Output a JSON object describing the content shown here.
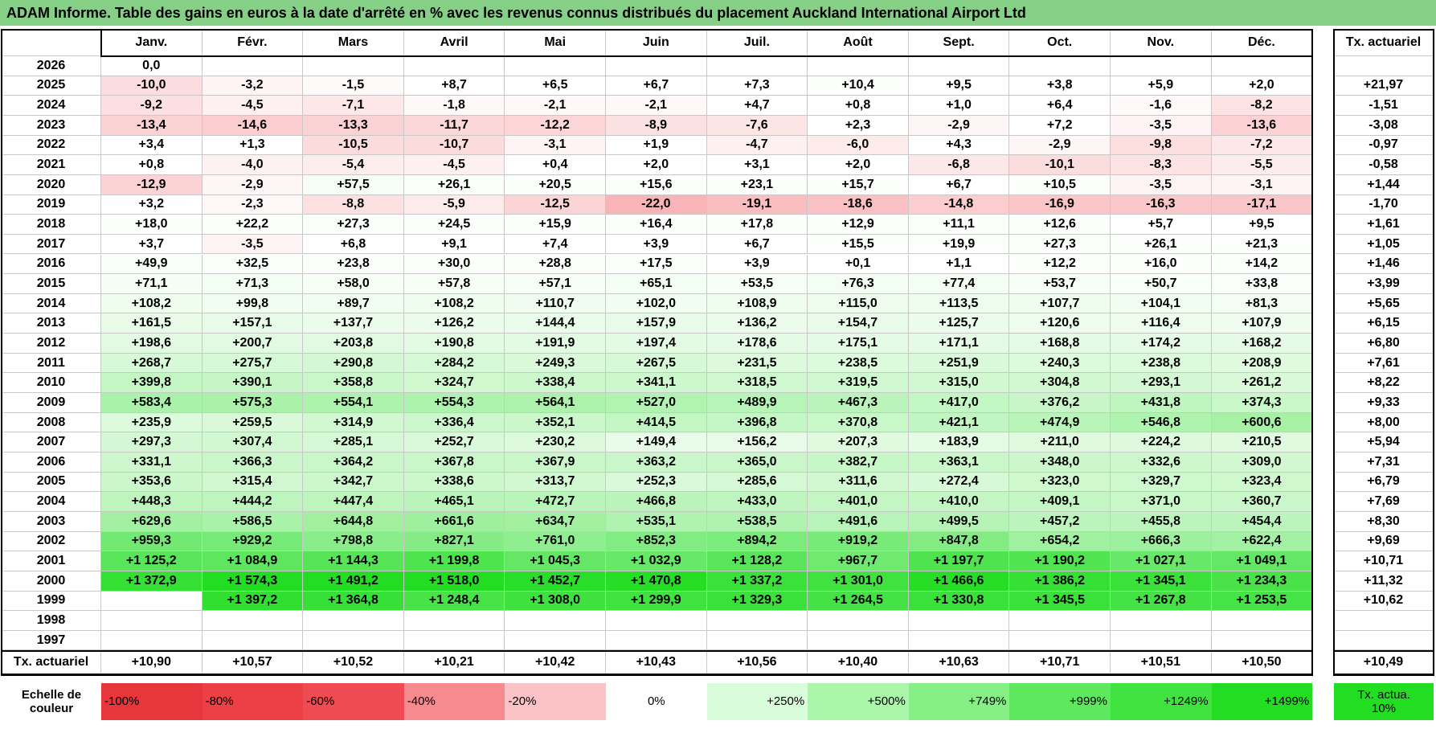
{
  "title": "ADAM Informe. Table des gains en euros à la date d'arrêté en % avec les revenus connus distribués du placement Auckland International Airport Ltd",
  "table": {
    "columns": [
      "Janv.",
      "Févr.",
      "Mars",
      "Avril",
      "Mai",
      "Juin",
      "Juil.",
      "Août",
      "Sept.",
      "Oct.",
      "Nov.",
      "Déc."
    ],
    "rate_header": "Tx. actuariel",
    "rows": [
      {
        "year": "2026",
        "values": [
          "0,0",
          null,
          null,
          null,
          null,
          null,
          null,
          null,
          null,
          null,
          null,
          null
        ],
        "rate": null
      },
      {
        "year": "2025",
        "values": [
          "-10,0",
          "-3,2",
          "-1,5",
          "+8,7",
          "+6,5",
          "+6,7",
          "+7,3",
          "+10,4",
          "+9,5",
          "+3,8",
          "+5,9",
          "+2,0"
        ],
        "rate": "+21,97"
      },
      {
        "year": "2024",
        "values": [
          "-9,2",
          "-4,5",
          "-7,1",
          "-1,8",
          "-2,1",
          "-2,1",
          "+4,7",
          "+0,8",
          "+1,0",
          "+6,4",
          "-1,6",
          "-8,2"
        ],
        "rate": "-1,51"
      },
      {
        "year": "2023",
        "values": [
          "-13,4",
          "-14,6",
          "-13,3",
          "-11,7",
          "-12,2",
          "-8,9",
          "-7,6",
          "+2,3",
          "-2,9",
          "+7,2",
          "-3,5",
          "-13,6"
        ],
        "rate": "-3,08"
      },
      {
        "year": "2022",
        "values": [
          "+3,4",
          "+1,3",
          "-10,5",
          "-10,7",
          "-3,1",
          "+1,9",
          "-4,7",
          "-6,0",
          "+4,3",
          "-2,9",
          "-9,8",
          "-7,2"
        ],
        "rate": "-0,97"
      },
      {
        "year": "2021",
        "values": [
          "+0,8",
          "-4,0",
          "-5,4",
          "-4,5",
          "+0,4",
          "+2,0",
          "+3,1",
          "+2,0",
          "-6,8",
          "-10,1",
          "-8,3",
          "-5,5"
        ],
        "rate": "-0,58"
      },
      {
        "year": "2020",
        "values": [
          "-12,9",
          "-2,9",
          "+57,5",
          "+26,1",
          "+20,5",
          "+15,6",
          "+23,1",
          "+15,7",
          "+6,7",
          "+10,5",
          "-3,5",
          "-3,1"
        ],
        "rate": "+1,44"
      },
      {
        "year": "2019",
        "values": [
          "+3,2",
          "-2,3",
          "-8,8",
          "-5,9",
          "-12,5",
          "-22,0",
          "-19,1",
          "-18,6",
          "-14,8",
          "-16,9",
          "-16,3",
          "-17,1"
        ],
        "rate": "-1,70"
      },
      {
        "year": "2018",
        "values": [
          "+18,0",
          "+22,2",
          "+27,3",
          "+24,5",
          "+15,9",
          "+16,4",
          "+17,8",
          "+12,9",
          "+11,1",
          "+12,6",
          "+5,7",
          "+9,5"
        ],
        "rate": "+1,61"
      },
      {
        "year": "2017",
        "values": [
          "+3,7",
          "-3,5",
          "+6,8",
          "+9,1",
          "+7,4",
          "+3,9",
          "+6,7",
          "+15,5",
          "+19,9",
          "+27,3",
          "+26,1",
          "+21,3"
        ],
        "rate": "+1,05"
      },
      {
        "year": "2016",
        "values": [
          "+49,9",
          "+32,5",
          "+23,8",
          "+30,0",
          "+28,8",
          "+17,5",
          "+3,9",
          "+0,1",
          "+1,1",
          "+12,2",
          "+16,0",
          "+14,2"
        ],
        "rate": "+1,46"
      },
      {
        "year": "2015",
        "values": [
          "+71,1",
          "+71,3",
          "+58,0",
          "+57,8",
          "+57,1",
          "+65,1",
          "+53,5",
          "+76,3",
          "+77,4",
          "+53,7",
          "+50,7",
          "+33,8"
        ],
        "rate": "+3,99"
      },
      {
        "year": "2014",
        "values": [
          "+108,2",
          "+99,8",
          "+89,7",
          "+108,2",
          "+110,7",
          "+102,0",
          "+108,9",
          "+115,0",
          "+113,5",
          "+107,7",
          "+104,1",
          "+81,3"
        ],
        "rate": "+5,65"
      },
      {
        "year": "2013",
        "values": [
          "+161,5",
          "+157,1",
          "+137,7",
          "+126,2",
          "+144,4",
          "+157,9",
          "+136,2",
          "+154,7",
          "+125,7",
          "+120,6",
          "+116,4",
          "+107,9"
        ],
        "rate": "+6,15"
      },
      {
        "year": "2012",
        "values": [
          "+198,6",
          "+200,7",
          "+203,8",
          "+190,8",
          "+191,9",
          "+197,4",
          "+178,6",
          "+175,1",
          "+171,1",
          "+168,8",
          "+174,2",
          "+168,2"
        ],
        "rate": "+6,80"
      },
      {
        "year": "2011",
        "values": [
          "+268,7",
          "+275,7",
          "+290,8",
          "+284,2",
          "+249,3",
          "+267,5",
          "+231,5",
          "+238,5",
          "+251,9",
          "+240,3",
          "+238,8",
          "+208,9"
        ],
        "rate": "+7,61"
      },
      {
        "year": "2010",
        "values": [
          "+399,8",
          "+390,1",
          "+358,8",
          "+324,7",
          "+338,4",
          "+341,1",
          "+318,5",
          "+319,5",
          "+315,0",
          "+304,8",
          "+293,1",
          "+261,2"
        ],
        "rate": "+8,22"
      },
      {
        "year": "2009",
        "values": [
          "+583,4",
          "+575,3",
          "+554,1",
          "+554,3",
          "+564,1",
          "+527,0",
          "+489,9",
          "+467,3",
          "+417,0",
          "+376,2",
          "+431,8",
          "+374,3"
        ],
        "rate": "+9,33"
      },
      {
        "year": "2008",
        "values": [
          "+235,9",
          "+259,5",
          "+314,9",
          "+336,4",
          "+352,1",
          "+414,5",
          "+396,8",
          "+370,8",
          "+421,1",
          "+474,9",
          "+546,8",
          "+600,6"
        ],
        "rate": "+8,00"
      },
      {
        "year": "2007",
        "values": [
          "+297,3",
          "+307,4",
          "+285,1",
          "+252,7",
          "+230,2",
          "+149,4",
          "+156,2",
          "+207,3",
          "+183,9",
          "+211,0",
          "+224,2",
          "+210,5"
        ],
        "rate": "+5,94"
      },
      {
        "year": "2006",
        "values": [
          "+331,1",
          "+366,3",
          "+364,2",
          "+367,8",
          "+367,9",
          "+363,2",
          "+365,0",
          "+382,7",
          "+363,1",
          "+348,0",
          "+332,6",
          "+309,0"
        ],
        "rate": "+7,31"
      },
      {
        "year": "2005",
        "values": [
          "+353,6",
          "+315,4",
          "+342,7",
          "+338,6",
          "+313,7",
          "+252,3",
          "+285,6",
          "+311,6",
          "+272,4",
          "+323,0",
          "+329,7",
          "+323,4"
        ],
        "rate": "+6,79"
      },
      {
        "year": "2004",
        "values": [
          "+448,3",
          "+444,2",
          "+447,4",
          "+465,1",
          "+472,7",
          "+466,8",
          "+433,0",
          "+401,0",
          "+410,0",
          "+409,1",
          "+371,0",
          "+360,7"
        ],
        "rate": "+7,69"
      },
      {
        "year": "2003",
        "values": [
          "+629,6",
          "+586,5",
          "+644,8",
          "+661,6",
          "+634,7",
          "+535,1",
          "+538,5",
          "+491,6",
          "+499,5",
          "+457,2",
          "+455,8",
          "+454,4"
        ],
        "rate": "+8,30"
      },
      {
        "year": "2002",
        "values": [
          "+959,3",
          "+929,2",
          "+798,8",
          "+827,1",
          "+761,0",
          "+852,3",
          "+894,2",
          "+919,2",
          "+847,8",
          "+654,2",
          "+666,3",
          "+622,4"
        ],
        "rate": "+9,69"
      },
      {
        "year": "2001",
        "values": [
          "+1 125,2",
          "+1 084,9",
          "+1 144,3",
          "+1 199,8",
          "+1 045,3",
          "+1 032,9",
          "+1 128,2",
          "+967,7",
          "+1 197,7",
          "+1 190,2",
          "+1 027,1",
          "+1 049,1"
        ],
        "rate": "+10,71"
      },
      {
        "year": "2000",
        "values": [
          "+1 372,9",
          "+1 574,3",
          "+1 491,2",
          "+1 518,0",
          "+1 452,7",
          "+1 470,8",
          "+1 337,2",
          "+1 301,0",
          "+1 466,6",
          "+1 386,2",
          "+1 345,1",
          "+1 234,3"
        ],
        "rate": "+11,32"
      },
      {
        "year": "1999",
        "values": [
          null,
          "+1 397,2",
          "+1 364,8",
          "+1 248,4",
          "+1 308,0",
          "+1 299,9",
          "+1 329,3",
          "+1 264,5",
          "+1 330,8",
          "+1 345,5",
          "+1 267,8",
          "+1 253,5"
        ],
        "rate": "+10,62"
      },
      {
        "year": "1998",
        "values": [
          null,
          null,
          null,
          null,
          null,
          null,
          null,
          null,
          null,
          null,
          null,
          null
        ],
        "rate": null
      },
      {
        "year": "1997",
        "values": [
          null,
          null,
          null,
          null,
          null,
          null,
          null,
          null,
          null,
          null,
          null,
          null
        ],
        "rate": null
      }
    ],
    "footer": {
      "label": "Tx. actuariel",
      "values": [
        "+10,90",
        "+10,57",
        "+10,52",
        "+10,21",
        "+10,42",
        "+10,43",
        "+10,56",
        "+10,40",
        "+10,63",
        "+10,71",
        "+10,51",
        "+10,50"
      ],
      "rate": "+10,49"
    }
  },
  "legend": {
    "label": "Echelle de couleur",
    "steps": [
      "-100%",
      "-80%",
      "-60%",
      "-40%",
      "-20%",
      "0%",
      "+250%",
      "+500%",
      "+749%",
      "+999%",
      "+1249%",
      "+1499%"
    ],
    "colors": [
      "#e8363d",
      "#ec3f46",
      "#f04a52",
      "#f58b8f",
      "#fbc3c5",
      "#ffffff",
      "#d8fdd8",
      "#aaf7aa",
      "#86f086",
      "#5de85d",
      "#3fe23f",
      "#22dd22"
    ],
    "rate_label": "Tx. actua. 10%",
    "rate_color": "#22dd22"
  }
}
